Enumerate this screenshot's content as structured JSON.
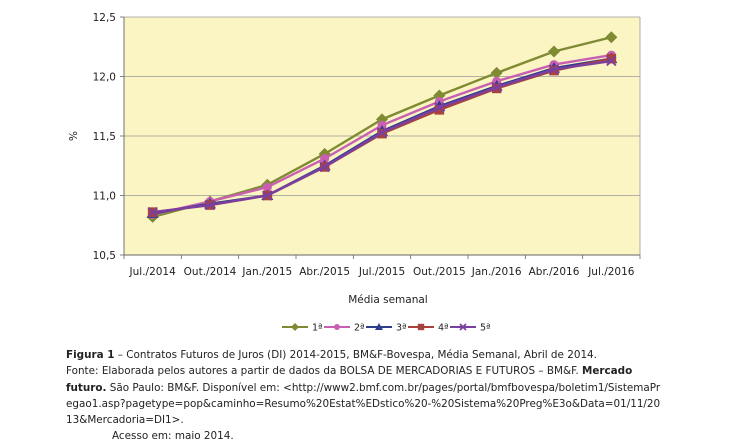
{
  "chart_data": {
    "type": "line",
    "title": "",
    "xlabel": "Média semanal",
    "ylabel": "%",
    "ylim": [
      10.5,
      12.5
    ],
    "yticks": [
      "10,5",
      "11,0",
      "11,5",
      "12,0",
      "12,5"
    ],
    "ytick_values": [
      10.5,
      11.0,
      11.5,
      12.0,
      12.5
    ],
    "categories": [
      "Jul./2014",
      "Out./2014",
      "Jan./2015",
      "Abr./2015",
      "Jul./2015",
      "Out./2015",
      "Jan./2016",
      "Abr./2016",
      "Jul./2016"
    ],
    "grid": "horizontal",
    "legend_position": "bottom",
    "plot_background": "#fbf5c4",
    "series": [
      {
        "name": "1ª",
        "color": "#7f8a32",
        "marker": "diamond",
        "values": [
          10.82,
          10.95,
          11.09,
          11.35,
          11.64,
          11.84,
          12.03,
          12.21,
          12.33
        ]
      },
      {
        "name": "2ª",
        "color": "#c85fb2",
        "marker": "circle",
        "values": [
          10.84,
          10.95,
          11.07,
          11.31,
          11.59,
          11.79,
          11.96,
          12.1,
          12.18
        ]
      },
      {
        "name": "3ª",
        "color": "#2e3c8c",
        "marker": "triangle",
        "values": [
          10.85,
          10.93,
          11.0,
          11.25,
          11.54,
          11.75,
          11.92,
          12.07,
          12.15
        ]
      },
      {
        "name": "4ª",
        "color": "#a8423c",
        "marker": "square",
        "values": [
          10.86,
          10.92,
          11.0,
          11.24,
          11.52,
          11.72,
          11.9,
          12.05,
          12.15
        ]
      },
      {
        "name": "5ª",
        "color": "#7a3fa0",
        "marker": "x",
        "values": [
          10.86,
          10.92,
          11.0,
          11.24,
          11.53,
          11.74,
          11.91,
          12.06,
          12.13
        ]
      }
    ]
  },
  "caption": {
    "figure_label": "Figura 1",
    "figure_text": " – Contratos Futuros de Juros (DI) 2014-2015, BM&F-Bovespa, Média Semanal, Abril de 2014.",
    "source_label": "Fonte:",
    "source_text_1": " Elaborada pelos autores a partir de dados da BOLSA DE MERCADORIAS E FUTUROS – BM&F. ",
    "source_bold": "Mercado futuro.",
    "source_text_2": " São Paulo: BM&F. Disponível em: <http://www2.bmf.com.br/pages/portal/bmfbovespa/boletim1/SistemaPregao1.asp?pagetype=pop&caminho=Resumo%20Estat%EDstico%20-%20Sistema%20Preg%E3o&Data=01/11/2013&Mercadoria=DI1>.",
    "access_text": "Acesso em: maio 2014."
  }
}
